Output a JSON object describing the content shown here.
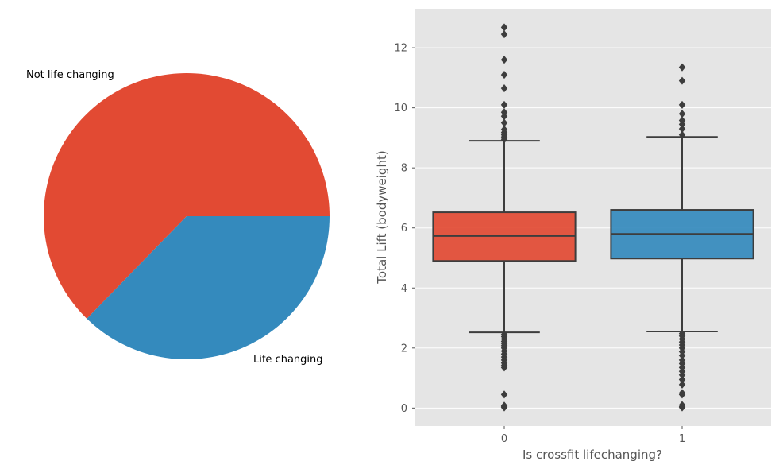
{
  "chart_data": [
    {
      "type": "pie",
      "labels": [
        "Not life changing",
        "Life changing"
      ],
      "values": [
        62.7,
        37.3
      ],
      "colors": [
        "#e24a33",
        "#348abd"
      ]
    },
    {
      "type": "box",
      "xlabel": "Is crossfit lifechanging?",
      "ylabel": "Total Lift (bodyweight)",
      "categories": [
        "0",
        "1"
      ],
      "colors": [
        "#e24a33",
        "#348abd"
      ],
      "ylim": [
        -0.6,
        13.3
      ],
      "yticks": [
        0,
        2,
        4,
        6,
        8,
        10,
        12
      ],
      "grid": true,
      "boxes": [
        {
          "category": "0",
          "whisker_low": 2.52,
          "q1": 4.9,
          "median": 5.73,
          "q3": 6.52,
          "whisker_high": 8.9,
          "outliers": [
            0.02,
            0.05,
            0.08,
            0.45,
            1.35,
            1.42,
            1.5,
            1.6,
            1.7,
            1.8,
            1.9,
            2.0,
            2.08,
            2.15,
            2.22,
            2.3,
            2.38,
            2.45,
            8.95,
            9.03,
            9.1,
            9.18,
            9.28,
            9.5,
            9.72,
            9.85,
            10.1,
            10.65,
            11.1,
            11.6,
            12.45,
            12.68
          ]
        },
        {
          "category": "1",
          "whisker_low": 2.55,
          "q1": 4.98,
          "median": 5.8,
          "q3": 6.6,
          "whisker_high": 9.03,
          "outliers": [
            0.02,
            0.05,
            0.1,
            0.45,
            0.5,
            0.78,
            0.95,
            1.1,
            1.22,
            1.35,
            1.48,
            1.6,
            1.75,
            1.88,
            2.0,
            2.1,
            2.2,
            2.3,
            2.4,
            2.48,
            9.1,
            9.3,
            9.45,
            9.58,
            9.8,
            10.1,
            10.9,
            11.35
          ]
        }
      ]
    }
  ]
}
